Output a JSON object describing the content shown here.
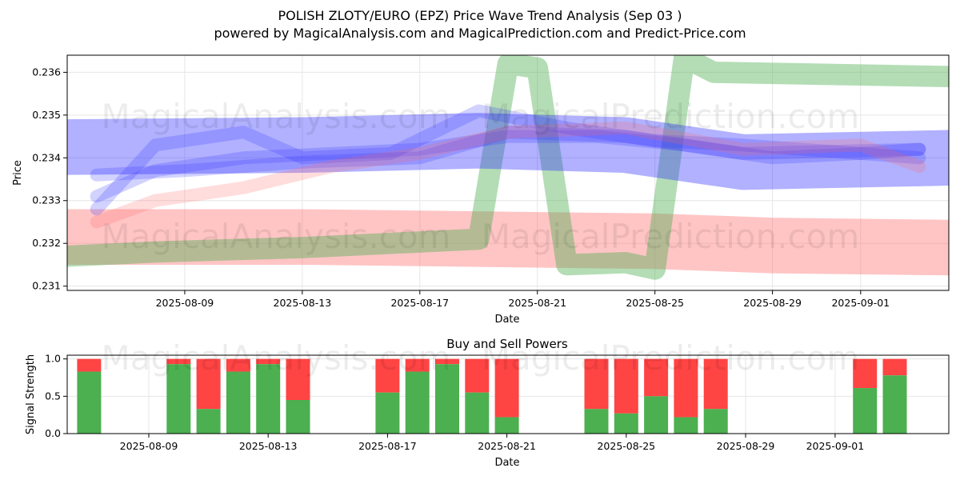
{
  "title_line1": "POLISH ZLOTY/EURO (EPZ) Price Wave Trend Analysis (Sep 03 )",
  "title_line2": "powered by MagicalAnalysis.com and MagicalPrediction.com and Predict-Price.com",
  "watermarks": [
    "MagicalAnalysis.com",
    "MagicalPrediction.com"
  ],
  "colors": {
    "red_band": "#ff6666",
    "green_band": "#4caf50",
    "blue_band": "#3333ff",
    "buy_bar": "#4caf50",
    "sell_bar": "#ff4444"
  },
  "chart_data": [
    {
      "type": "line",
      "xlabel": "Date",
      "ylabel": "Price",
      "x_range": [
        "2025-08-05",
        "2025-09-04"
      ],
      "ylim": [
        0.2309,
        0.2364
      ],
      "x_ticks": [
        "2025-08-09",
        "2025-08-13",
        "2025-08-17",
        "2025-08-21",
        "2025-08-25",
        "2025-08-29",
        "2025-09-01"
      ],
      "y_ticks": [
        0.231,
        0.232,
        0.233,
        0.234,
        0.235,
        0.236
      ],
      "grid": true,
      "bands": [
        {
          "color": "red",
          "width": 0.0013,
          "points": [
            [
              "2025-08-05",
              0.23215
            ],
            [
              "2025-08-13",
              0.23215
            ],
            [
              "2025-08-19",
              0.2321
            ],
            [
              "2025-08-25",
              0.23205
            ],
            [
              "2025-08-29",
              0.23195
            ],
            [
              "2025-09-04",
              0.2319
            ]
          ]
        },
        {
          "color": "green",
          "width": 0.0005,
          "points": [
            [
              "2025-08-05",
              0.2317
            ],
            [
              "2025-08-08",
              0.2318
            ],
            [
              "2025-08-13",
              0.2319
            ],
            [
              "2025-08-19",
              0.2321
            ],
            [
              "2025-08-20",
              0.2362
            ],
            [
              "2025-08-21",
              0.2361
            ],
            [
              "2025-08-22",
              0.2315
            ],
            [
              "2025-08-24",
              0.23155
            ],
            [
              "2025-08-25",
              0.2314
            ],
            [
              "2025-08-26",
              0.23635
            ],
            [
              "2025-08-27",
              0.236
            ],
            [
              "2025-09-04",
              0.2359
            ]
          ]
        },
        {
          "color": "blue",
          "width": 0.0013,
          "points": [
            [
              "2025-08-05",
              0.23425
            ],
            [
              "2025-08-13",
              0.2343
            ],
            [
              "2025-08-19",
              0.2344
            ],
            [
              "2025-08-24",
              0.2343
            ],
            [
              "2025-08-28",
              0.2339
            ],
            [
              "2025-09-04",
              0.234
            ]
          ]
        },
        {
          "color": "blue",
          "width": 0.0003,
          "points": [
            [
              "2025-08-06",
              0.2331
            ],
            [
              "2025-08-08",
              0.2337
            ],
            [
              "2025-08-11",
              0.234
            ],
            [
              "2025-08-14",
              0.2341
            ],
            [
              "2025-08-17",
              0.2342
            ],
            [
              "2025-08-20",
              0.2345
            ],
            [
              "2025-08-23",
              0.2345
            ],
            [
              "2025-08-26",
              0.2343
            ],
            [
              "2025-08-29",
              0.234
            ],
            [
              "2025-09-01",
              0.2341
            ],
            [
              "2025-09-03",
              0.2342
            ]
          ]
        },
        {
          "color": "blue",
          "width": 0.0003,
          "points": [
            [
              "2025-08-06",
              0.2336
            ],
            [
              "2025-08-09",
              0.2337
            ],
            [
              "2025-08-13",
              0.2339
            ],
            [
              "2025-08-17",
              0.234
            ],
            [
              "2025-08-20",
              0.2346
            ],
            [
              "2025-08-24",
              0.2345
            ],
            [
              "2025-08-28",
              0.2341
            ],
            [
              "2025-09-03",
              0.2342
            ]
          ]
        },
        {
          "color": "blue",
          "width": 0.0003,
          "points": [
            [
              "2025-08-06",
              0.2328
            ],
            [
              "2025-08-08",
              0.2343
            ],
            [
              "2025-08-11",
              0.2346
            ],
            [
              "2025-08-13",
              0.234
            ],
            [
              "2025-08-16",
              0.2341
            ],
            [
              "2025-08-19",
              0.2351
            ],
            [
              "2025-08-22",
              0.2347
            ],
            [
              "2025-08-25",
              0.2344
            ],
            [
              "2025-08-28",
              0.2343
            ],
            [
              "2025-09-03",
              0.234
            ]
          ]
        },
        {
          "color": "red",
          "width": 0.0003,
          "points": [
            [
              "2025-08-06",
              0.2325
            ],
            [
              "2025-08-08",
              0.233
            ],
            [
              "2025-08-11",
              0.2333
            ],
            [
              "2025-08-14",
              0.2338
            ],
            [
              "2025-08-17",
              0.2341
            ],
            [
              "2025-08-20",
              0.2346
            ],
            [
              "2025-08-24",
              0.2347
            ],
            [
              "2025-08-28",
              0.2342
            ],
            [
              "2025-09-01",
              0.2343
            ],
            [
              "2025-09-03",
              0.2338
            ]
          ]
        }
      ]
    },
    {
      "type": "bar",
      "title": "Buy and Sell Powers",
      "xlabel": "Date",
      "ylabel": "Signal Strength",
      "ylim": [
        0,
        1.05
      ],
      "y_ticks": [
        0.0,
        0.5,
        1.0
      ],
      "x_ticks": [
        "2025-08-09",
        "2025-08-13",
        "2025-08-17",
        "2025-08-21",
        "2025-08-25",
        "2025-08-29",
        "2025-09-01"
      ],
      "stacked": true,
      "series": [
        {
          "name": "buy",
          "color": "green"
        },
        {
          "name": "sell",
          "color": "red"
        }
      ],
      "bars": [
        {
          "date": "2025-08-07",
          "buy": 0.83
        },
        {
          "date": "2025-08-10",
          "buy": 0.93
        },
        {
          "date": "2025-08-11",
          "buy": 0.33
        },
        {
          "date": "2025-08-12",
          "buy": 0.83
        },
        {
          "date": "2025-08-13",
          "buy": 0.93
        },
        {
          "date": "2025-08-14",
          "buy": 0.45
        },
        {
          "date": "2025-08-17",
          "buy": 0.55
        },
        {
          "date": "2025-08-18",
          "buy": 0.83
        },
        {
          "date": "2025-08-19",
          "buy": 0.93
        },
        {
          "date": "2025-08-20",
          "buy": 0.55
        },
        {
          "date": "2025-08-21",
          "buy": 0.22
        },
        {
          "date": "2025-08-24",
          "buy": 0.33
        },
        {
          "date": "2025-08-25",
          "buy": 0.27
        },
        {
          "date": "2025-08-26",
          "buy": 0.5
        },
        {
          "date": "2025-08-27",
          "buy": 0.22
        },
        {
          "date": "2025-08-28",
          "buy": 0.33
        },
        {
          "date": "2025-09-02",
          "buy": 0.61
        },
        {
          "date": "2025-09-03",
          "buy": 0.78
        }
      ]
    }
  ]
}
